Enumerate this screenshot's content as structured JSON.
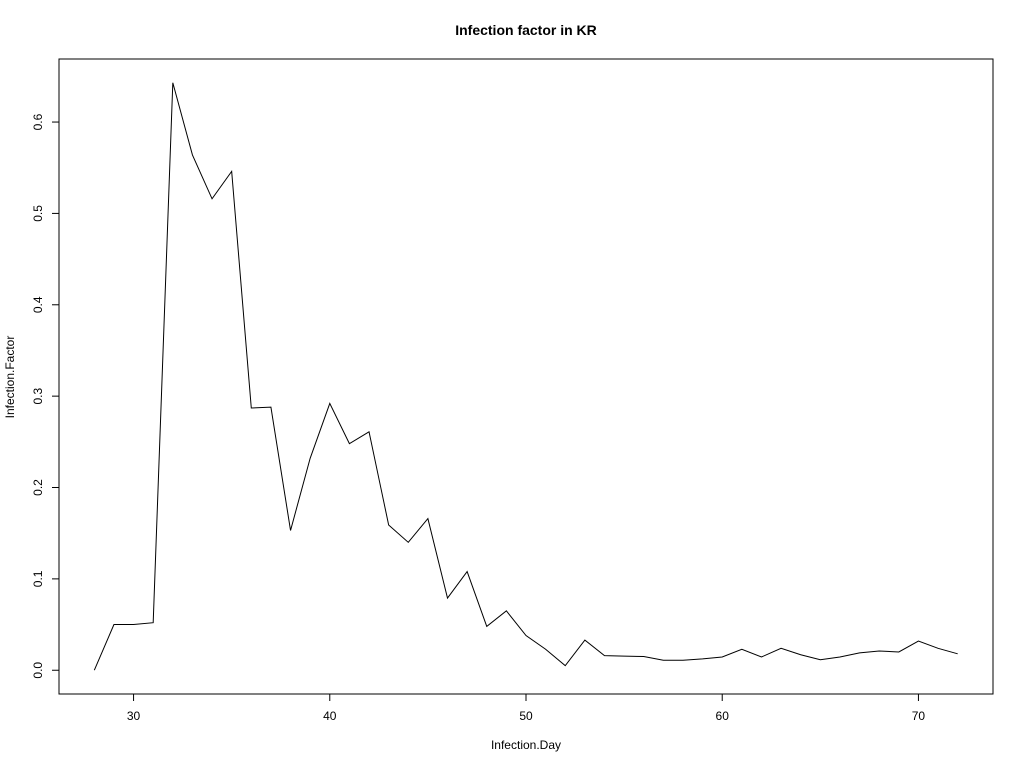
{
  "chart_data": {
    "type": "line",
    "title": "Infection factor in KR",
    "xlabel": "Infection.Day",
    "ylabel": "Infection.Factor",
    "xlim": [
      26.2,
      73.8
    ],
    "ylim": [
      -0.026,
      0.669
    ],
    "x_ticks": [
      30,
      40,
      50,
      60,
      70
    ],
    "y_ticks": [
      0.0,
      0.1,
      0.2,
      0.3,
      0.4,
      0.5,
      0.6
    ],
    "x_tick_labels": [
      "30",
      "40",
      "50",
      "60",
      "70"
    ],
    "y_tick_labels": [
      "0.0",
      "0.1",
      "0.2",
      "0.3",
      "0.4",
      "0.5",
      "0.6"
    ],
    "grid": false,
    "series": [
      {
        "x": [
          28,
          29,
          30,
          31,
          32,
          33,
          34,
          35,
          36,
          37,
          38,
          39,
          40,
          41,
          42,
          43,
          44,
          45,
          46,
          47,
          48,
          49,
          50,
          51,
          52,
          53,
          54,
          55,
          56,
          57,
          58,
          59,
          60,
          61,
          62,
          63,
          64,
          65,
          66,
          67,
          68,
          69,
          70,
          71,
          72
        ],
        "values": [
          0.0,
          0.05,
          0.05,
          0.052,
          0.643,
          0.564,
          0.516,
          0.546,
          0.287,
          0.288,
          0.153,
          0.232,
          0.292,
          0.248,
          0.261,
          0.159,
          0.14,
          0.166,
          0.079,
          0.108,
          0.048,
          0.065,
          0.038,
          0.023,
          0.005,
          0.033,
          0.016,
          0.0155,
          0.015,
          0.011,
          0.011,
          0.0125,
          0.0145,
          0.023,
          0.0145,
          0.024,
          0.017,
          0.0115,
          0.0145,
          0.019,
          0.021,
          0.02,
          0.032,
          0.024,
          0.018
        ]
      }
    ]
  }
}
